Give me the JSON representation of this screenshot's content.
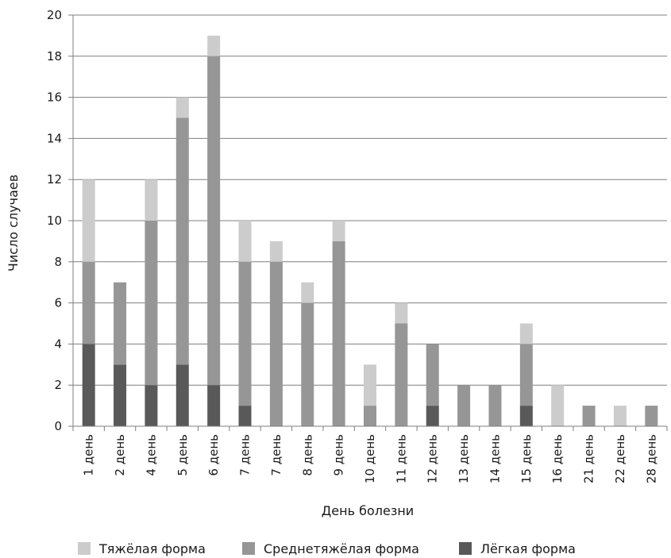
{
  "chart_data": {
    "type": "bar",
    "stacked": true,
    "title": "",
    "xlabel": "День болезни",
    "ylabel": "Число случаев",
    "ylim": [
      0,
      20
    ],
    "yticks": [
      0,
      2,
      4,
      6,
      8,
      10,
      12,
      14,
      16,
      18,
      20
    ],
    "grid": true,
    "legend_position": "bottom",
    "categories": [
      "1 день",
      "2 день",
      "4 день",
      "5 день",
      "6 день",
      "7 день",
      "7 день",
      "8 день",
      "9 день",
      "10 день",
      "11 день",
      "12 день",
      "13 день",
      "14 день",
      "15 день",
      "16 день",
      "21 день",
      "22 день",
      "28 день"
    ],
    "series": [
      {
        "name": "Лёгкая форма",
        "color": "#595959",
        "values": [
          4,
          3,
          2,
          3,
          2,
          1,
          0,
          0,
          0,
          0,
          0,
          1,
          0,
          0,
          1,
          0,
          0,
          0,
          0
        ]
      },
      {
        "name": "Среднетяжёлая форма",
        "color": "#969696",
        "values": [
          4,
          4,
          8,
          12,
          16,
          7,
          8,
          6,
          9,
          1,
          5,
          3,
          2,
          2,
          3,
          0,
          1,
          0,
          1
        ]
      },
      {
        "name": "Тяжёлая форма",
        "color": "#cccccc",
        "values": [
          4,
          0,
          2,
          1,
          1,
          2,
          1,
          1,
          1,
          2,
          1,
          0,
          0,
          0,
          1,
          2,
          0,
          1,
          0
        ]
      }
    ],
    "legend_order": [
      "Тяжёлая форма",
      "Среднетяжёлая форма",
      "Лёгкая форма"
    ]
  }
}
